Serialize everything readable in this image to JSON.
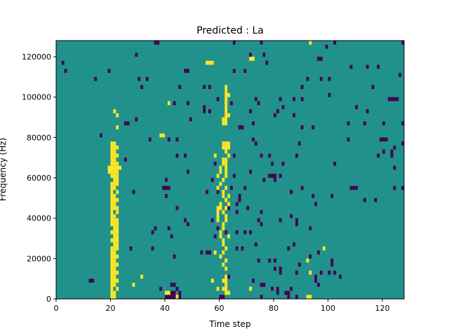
{
  "chart_data": {
    "type": "heatmap",
    "title": "Predicted : La",
    "xlabel": "Time step",
    "ylabel": "Frequency (Hz)",
    "xlim": [
      0,
      128
    ],
    "ylim": [
      0,
      128000
    ],
    "x_ticks": [
      0,
      20,
      40,
      60,
      80,
      100,
      120
    ],
    "y_ticks": [
      0,
      20000,
      40000,
      60000,
      80000,
      100000,
      120000
    ],
    "grid": false,
    "colormap": "viridis",
    "background_value": 0,
    "colors": {
      "background": "#21918c",
      "high": "#fde725",
      "low": "#440154"
    },
    "cell_size": {
      "time_steps": 1,
      "frequency_hz": 2000
    },
    "high_cells": [
      [
        20,
        0
      ],
      [
        21,
        0
      ],
      [
        44,
        0
      ],
      [
        92,
        0
      ],
      [
        93,
        0
      ],
      [
        20,
        2000
      ],
      [
        21,
        2000
      ],
      [
        40,
        2000
      ],
      [
        41,
        2000
      ],
      [
        62,
        2000
      ],
      [
        63,
        2000
      ],
      [
        20,
        4000
      ],
      [
        22,
        4000
      ],
      [
        59,
        4000
      ],
      [
        61,
        4000
      ],
      [
        62,
        4000
      ],
      [
        71,
        4000
      ],
      [
        20,
        6000
      ],
      [
        21,
        6000
      ],
      [
        28,
        6000
      ],
      [
        62,
        6000
      ],
      [
        20,
        8000
      ],
      [
        21,
        8000
      ],
      [
        22,
        8000
      ],
      [
        57,
        8000
      ],
      [
        61,
        8000
      ],
      [
        62,
        8000
      ],
      [
        20,
        10000
      ],
      [
        21,
        10000
      ],
      [
        31,
        10000
      ],
      [
        62,
        10000
      ],
      [
        20,
        12000
      ],
      [
        21,
        12000
      ],
      [
        22,
        12000
      ],
      [
        93,
        12000
      ],
      [
        20,
        14000
      ],
      [
        21,
        14000
      ],
      [
        62,
        14000
      ],
      [
        20,
        16000
      ],
      [
        21,
        16000
      ],
      [
        22,
        16000
      ],
      [
        61,
        16000
      ],
      [
        20,
        18000
      ],
      [
        21,
        18000
      ],
      [
        62,
        18000
      ],
      [
        92,
        18000
      ],
      [
        20,
        20000
      ],
      [
        21,
        20000
      ],
      [
        22,
        20000
      ],
      [
        60,
        20000
      ],
      [
        20,
        22000
      ],
      [
        21,
        22000
      ],
      [
        58,
        22000
      ],
      [
        61,
        22000
      ],
      [
        20,
        24000
      ],
      [
        21,
        24000
      ],
      [
        22,
        24000
      ],
      [
        62,
        24000
      ],
      [
        98,
        24000
      ],
      [
        21,
        26000
      ],
      [
        22,
        26000
      ],
      [
        61,
        26000
      ],
      [
        20,
        28000
      ],
      [
        21,
        28000
      ],
      [
        22,
        28000
      ],
      [
        61,
        28000
      ],
      [
        21,
        30000
      ],
      [
        22,
        30000
      ],
      [
        60,
        30000
      ],
      [
        63,
        30000
      ],
      [
        20,
        32000
      ],
      [
        21,
        32000
      ],
      [
        22,
        32000
      ],
      [
        60,
        32000
      ],
      [
        21,
        34000
      ],
      [
        22,
        34000
      ],
      [
        61,
        34000
      ],
      [
        20,
        36000
      ],
      [
        21,
        36000
      ],
      [
        22,
        36000
      ],
      [
        61,
        36000
      ],
      [
        20,
        38000
      ],
      [
        21,
        38000
      ],
      [
        22,
        38000
      ],
      [
        59,
        38000
      ],
      [
        62,
        38000
      ],
      [
        20,
        40000
      ],
      [
        21,
        40000
      ],
      [
        59,
        40000
      ],
      [
        62,
        40000
      ],
      [
        20,
        42000
      ],
      [
        22,
        42000
      ],
      [
        59,
        42000
      ],
      [
        61,
        42000
      ],
      [
        20,
        44000
      ],
      [
        21,
        44000
      ],
      [
        22,
        44000
      ],
      [
        59,
        44000
      ],
      [
        60,
        44000
      ],
      [
        62,
        44000
      ],
      [
        20,
        46000
      ],
      [
        21,
        46000
      ],
      [
        60,
        46000
      ],
      [
        63,
        46000
      ],
      [
        20,
        48000
      ],
      [
        21,
        48000
      ],
      [
        22,
        48000
      ],
      [
        62,
        48000
      ],
      [
        20,
        50000
      ],
      [
        21,
        50000
      ],
      [
        61,
        50000
      ],
      [
        63,
        50000
      ],
      [
        20,
        52000
      ],
      [
        22,
        52000
      ],
      [
        61,
        52000
      ],
      [
        20,
        54000
      ],
      [
        21,
        54000
      ],
      [
        59,
        54000
      ],
      [
        62,
        54000
      ],
      [
        20,
        56000
      ],
      [
        21,
        56000
      ],
      [
        22,
        56000
      ],
      [
        60,
        56000
      ],
      [
        21,
        58000
      ],
      [
        22,
        58000
      ],
      [
        61,
        58000
      ],
      [
        20,
        60000
      ],
      [
        21,
        60000
      ],
      [
        22,
        60000
      ],
      [
        59,
        60000
      ],
      [
        62,
        60000
      ],
      [
        19,
        62000
      ],
      [
        20,
        62000
      ],
      [
        21,
        62000
      ],
      [
        22,
        62000
      ],
      [
        60,
        62000
      ],
      [
        62,
        62000
      ],
      [
        19,
        64000
      ],
      [
        20,
        64000
      ],
      [
        21,
        64000
      ],
      [
        22,
        64000
      ],
      [
        23,
        64000
      ],
      [
        60,
        64000
      ],
      [
        62,
        64000
      ],
      [
        20,
        66000
      ],
      [
        21,
        66000
      ],
      [
        22,
        66000
      ],
      [
        61,
        66000
      ],
      [
        62,
        66000
      ],
      [
        20,
        68000
      ],
      [
        21,
        68000
      ],
      [
        61,
        68000
      ],
      [
        62,
        68000
      ],
      [
        20,
        70000
      ],
      [
        21,
        70000
      ],
      [
        22,
        70000
      ],
      [
        58,
        70000
      ],
      [
        63,
        70000
      ],
      [
        20,
        72000
      ],
      [
        21,
        72000
      ],
      [
        62,
        72000
      ],
      [
        20,
        74000
      ],
      [
        21,
        74000
      ],
      [
        22,
        74000
      ],
      [
        61,
        74000
      ],
      [
        62,
        74000
      ],
      [
        63,
        74000
      ],
      [
        20,
        76000
      ],
      [
        21,
        76000
      ],
      [
        61,
        76000
      ],
      [
        62,
        76000
      ],
      [
        63,
        76000
      ],
      [
        38,
        80000
      ],
      [
        39,
        80000
      ],
      [
        22,
        84000
      ],
      [
        61,
        86000
      ],
      [
        62,
        86000
      ],
      [
        61,
        88000
      ],
      [
        62,
        88000
      ],
      [
        22,
        90000
      ],
      [
        62,
        90000
      ],
      [
        63,
        90000
      ],
      [
        21,
        92000
      ],
      [
        62,
        92000
      ],
      [
        62,
        94000
      ],
      [
        41,
        96000
      ],
      [
        62,
        96000
      ],
      [
        62,
        98000
      ],
      [
        62,
        100000
      ],
      [
        63,
        100000
      ],
      [
        62,
        102000
      ],
      [
        62,
        104000
      ],
      [
        55,
        116000
      ],
      [
        56,
        116000
      ],
      [
        57,
        116000
      ],
      [
        71,
        118000
      ],
      [
        72,
        118000
      ],
      [
        93,
        126000
      ]
    ],
    "low_cells": [
      [
        40,
        0
      ],
      [
        41,
        0
      ],
      [
        42,
        0
      ],
      [
        43,
        0
      ],
      [
        45,
        0
      ],
      [
        60,
        0
      ],
      [
        61,
        0
      ],
      [
        75,
        0
      ],
      [
        85,
        0
      ],
      [
        88,
        0
      ],
      [
        42,
        2000
      ],
      [
        43,
        2000
      ],
      [
        45,
        2000
      ],
      [
        81,
        2000
      ],
      [
        84,
        2000
      ],
      [
        85,
        2000
      ],
      [
        38,
        4000
      ],
      [
        44,
        4000
      ],
      [
        79,
        4000
      ],
      [
        81,
        4000
      ],
      [
        86,
        4000
      ],
      [
        42,
        6000
      ],
      [
        43,
        6000
      ],
      [
        75,
        6000
      ],
      [
        76,
        6000
      ],
      [
        96,
        6000
      ],
      [
        12,
        8000
      ],
      [
        13,
        8000
      ],
      [
        72,
        8000
      ],
      [
        95,
        8000
      ],
      [
        63,
        10000
      ],
      [
        95,
        10000
      ],
      [
        104,
        10000
      ],
      [
        82,
        12000
      ],
      [
        88,
        12000
      ],
      [
        97,
        12000
      ],
      [
        100,
        12000
      ],
      [
        102,
        12000
      ],
      [
        80,
        14000
      ],
      [
        82,
        14000
      ],
      [
        89,
        16000
      ],
      [
        101,
        16000
      ],
      [
        74,
        18000
      ],
      [
        78,
        18000
      ],
      [
        80,
        18000
      ],
      [
        101,
        18000
      ],
      [
        43,
        20000
      ],
      [
        93,
        20000
      ],
      [
        53,
        22000
      ],
      [
        55,
        22000
      ],
      [
        56,
        22000
      ],
      [
        96,
        22000
      ],
      [
        27,
        24000
      ],
      [
        35,
        24000
      ],
      [
        66,
        24000
      ],
      [
        68,
        24000
      ],
      [
        85,
        24000
      ],
      [
        73,
        26000
      ],
      [
        87,
        26000
      ],
      [
        42,
        30000
      ],
      [
        58,
        30000
      ],
      [
        35,
        32000
      ],
      [
        62,
        32000
      ],
      [
        66,
        32000
      ],
      [
        69,
        32000
      ],
      [
        71,
        32000
      ],
      [
        36,
        34000
      ],
      [
        41,
        34000
      ],
      [
        59,
        34000
      ],
      [
        93,
        34000
      ],
      [
        48,
        36000
      ],
      [
        75,
        36000
      ],
      [
        88,
        36000
      ],
      [
        47,
        38000
      ],
      [
        57,
        38000
      ],
      [
        74,
        38000
      ],
      [
        82,
        38000
      ],
      [
        88,
        38000
      ],
      [
        86,
        40000
      ],
      [
        66,
        42000
      ],
      [
        75,
        42000
      ],
      [
        44,
        44000
      ],
      [
        63,
        44000
      ],
      [
        70,
        44000
      ],
      [
        66,
        46000
      ],
      [
        95,
        46000
      ],
      [
        67,
        48000
      ],
      [
        113,
        48000
      ],
      [
        117,
        48000
      ],
      [
        128,
        48000
      ],
      [
        40,
        50000
      ],
      [
        67,
        50000
      ],
      [
        94,
        50000
      ],
      [
        101,
        50000
      ],
      [
        28,
        52000
      ],
      [
        55,
        52000
      ],
      [
        59,
        52000
      ],
      [
        86,
        52000
      ],
      [
        39,
        54000
      ],
      [
        40,
        54000
      ],
      [
        41,
        54000
      ],
      [
        64,
        54000
      ],
      [
        69,
        54000
      ],
      [
        90,
        54000
      ],
      [
        108,
        54000
      ],
      [
        109,
        54000
      ],
      [
        110,
        54000
      ],
      [
        124,
        54000
      ],
      [
        127,
        54000
      ],
      [
        128,
        54000
      ],
      [
        40,
        58000
      ],
      [
        57,
        58000
      ],
      [
        76,
        58000
      ],
      [
        80,
        58000
      ],
      [
        65,
        60000
      ],
      [
        78,
        60000
      ],
      [
        79,
        60000
      ],
      [
        80,
        60000
      ],
      [
        82,
        60000
      ],
      [
        48,
        62000
      ],
      [
        60,
        62000
      ],
      [
        71,
        62000
      ],
      [
        124,
        64000
      ],
      [
        58,
        66000
      ],
      [
        62,
        66000
      ],
      [
        79,
        66000
      ],
      [
        83,
        66000
      ],
      [
        102,
        66000
      ],
      [
        25,
        68000
      ],
      [
        44,
        70000
      ],
      [
        47,
        70000
      ],
      [
        65,
        70000
      ],
      [
        75,
        70000
      ],
      [
        78,
        70000
      ],
      [
        88,
        70000
      ],
      [
        118,
        70000
      ],
      [
        123,
        70000
      ],
      [
        120,
        72000
      ],
      [
        123,
        72000
      ],
      [
        124,
        74000
      ],
      [
        61,
        76000
      ],
      [
        63,
        76000
      ],
      [
        73,
        76000
      ],
      [
        89,
        76000
      ],
      [
        127,
        76000
      ],
      [
        34,
        78000
      ],
      [
        41,
        78000
      ],
      [
        44,
        78000
      ],
      [
        72,
        78000
      ],
      [
        107,
        78000
      ],
      [
        119,
        78000
      ],
      [
        120,
        78000
      ],
      [
        121,
        78000
      ],
      [
        16,
        80000
      ],
      [
        38,
        80000
      ],
      [
        39,
        80000
      ],
      [
        67,
        84000
      ],
      [
        68,
        84000
      ],
      [
        90,
        84000
      ],
      [
        94,
        84000
      ],
      [
        25,
        86000
      ],
      [
        26,
        86000
      ],
      [
        72,
        86000
      ],
      [
        107,
        86000
      ],
      [
        113,
        86000
      ],
      [
        120,
        86000
      ],
      [
        127,
        86000
      ],
      [
        29,
        88000
      ],
      [
        49,
        88000
      ],
      [
        80,
        90000
      ],
      [
        87,
        90000
      ],
      [
        54,
        92000
      ],
      [
        56,
        92000
      ],
      [
        71,
        92000
      ],
      [
        81,
        92000
      ],
      [
        114,
        92000
      ],
      [
        54,
        94000
      ],
      [
        83,
        94000
      ],
      [
        110,
        94000
      ],
      [
        43,
        96000
      ],
      [
        48,
        96000
      ],
      [
        64,
        96000
      ],
      [
        74,
        96000
      ],
      [
        59,
        98000
      ],
      [
        73,
        98000
      ],
      [
        82,
        98000
      ],
      [
        87,
        98000
      ],
      [
        90,
        98000
      ],
      [
        122,
        98000
      ],
      [
        123,
        98000
      ],
      [
        124,
        98000
      ],
      [
        125,
        98000
      ],
      [
        100,
        100000
      ],
      [
        31,
        104000
      ],
      [
        45,
        104000
      ],
      [
        54,
        104000
      ],
      [
        56,
        104000
      ],
      [
        90,
        104000
      ],
      [
        116,
        104000
      ],
      [
        14,
        108000
      ],
      [
        30,
        108000
      ],
      [
        33,
        108000
      ],
      [
        92,
        108000
      ],
      [
        97,
        108000
      ],
      [
        100,
        108000
      ],
      [
        126,
        110000
      ],
      [
        3,
        112000
      ],
      [
        19,
        112000
      ],
      [
        47,
        112000
      ],
      [
        48,
        112000
      ],
      [
        65,
        112000
      ],
      [
        69,
        112000
      ],
      [
        108,
        114000
      ],
      [
        114,
        114000
      ],
      [
        118,
        114000
      ],
      [
        2,
        116000
      ],
      [
        77,
        116000
      ],
      [
        96,
        118000
      ],
      [
        97,
        118000
      ],
      [
        29,
        120000
      ],
      [
        71,
        120000
      ],
      [
        76,
        120000
      ],
      [
        99,
        124000
      ],
      [
        36,
        126000
      ],
      [
        37,
        126000
      ],
      [
        65,
        126000
      ],
      [
        75,
        126000
      ],
      [
        102,
        126000
      ],
      [
        127,
        126000
      ]
    ]
  }
}
